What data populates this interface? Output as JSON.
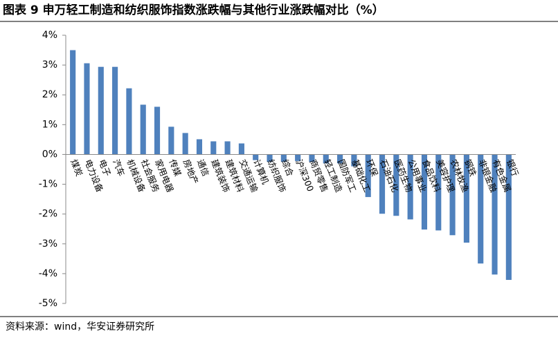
{
  "chart_data": {
    "type": "bar",
    "title": "图表 9 申万轻工制造和纺织服饰指数涨跌幅与其他行业涨跌幅对比（%）",
    "source": "资料来源：wind，华安证券研究所",
    "categories": [
      "煤炭",
      "电力设备",
      "电子",
      "汽车",
      "机械设备",
      "社会服务",
      "家用电器",
      "传媒",
      "房地产",
      "通信",
      "建筑装饰",
      "建筑材料",
      "交通运输",
      "计算机",
      "纺织服饰",
      "综合",
      "沪深300",
      "商贸零售",
      "轻工制造",
      "国防军工",
      "基础化工",
      "环保",
      "石油石化",
      "医药生物",
      "公用事业",
      "食品饮料",
      "美容护理",
      "农林牧渔",
      "钢铁",
      "非银金融",
      "有色金属",
      "银行"
    ],
    "values": [
      3.5,
      3.06,
      2.94,
      2.94,
      2.22,
      1.67,
      1.6,
      0.93,
      0.72,
      0.51,
      0.44,
      0.44,
      0.37,
      -0.19,
      -0.25,
      -0.25,
      -0.22,
      -0.25,
      -0.3,
      -0.3,
      -0.4,
      -1.43,
      -1.99,
      -2.06,
      -2.18,
      -2.52,
      -2.55,
      -2.71,
      -2.96,
      -3.66,
      -4.03,
      -4.21
    ],
    "color": "#4f81bd",
    "ylim": [
      -5,
      4
    ],
    "yticks": [
      {
        "value": -5,
        "label": "-5%"
      },
      {
        "value": -4,
        "label": "-4%"
      },
      {
        "value": -3,
        "label": "-3%"
      },
      {
        "value": -2,
        "label": "-2%"
      },
      {
        "value": -1,
        "label": "-1%"
      },
      {
        "value": 0,
        "label": "0%"
      },
      {
        "value": 1,
        "label": "1%"
      },
      {
        "value": 2,
        "label": "2%"
      },
      {
        "value": 3,
        "label": "3%"
      },
      {
        "value": 4,
        "label": "4%"
      }
    ],
    "grid": false
  }
}
